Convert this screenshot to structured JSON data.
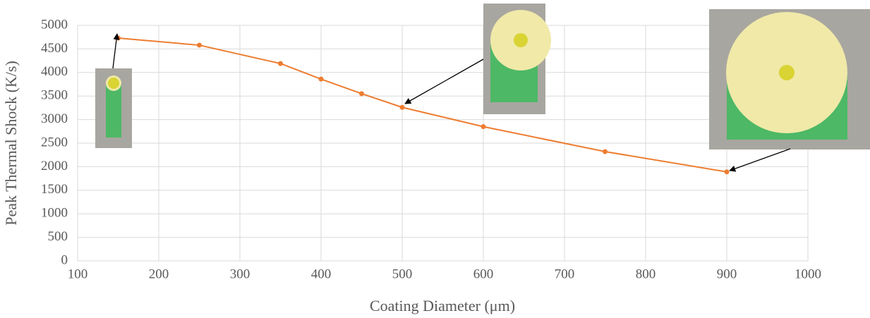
{
  "chart_data": {
    "type": "line",
    "x_label": "Coating Diameter (μm)",
    "y_label": "Peak Thermal Shock (K/s)",
    "x": [
      150,
      250,
      350,
      400,
      450,
      500,
      600,
      750,
      900
    ],
    "values": [
      4730,
      4580,
      4190,
      3860,
      3550,
      3260,
      2850,
      2320,
      1890
    ],
    "color": "#ed7d31",
    "xlim": [
      100,
      1000
    ],
    "xticks": [
      100,
      200,
      300,
      400,
      500,
      600,
      700,
      800,
      900,
      1000
    ],
    "ylim": [
      0,
      5000
    ],
    "yticks": [
      0,
      500,
      1000,
      1500,
      2000,
      2500,
      3000,
      3500,
      4000,
      4500,
      5000
    ],
    "grid": true
  }
}
